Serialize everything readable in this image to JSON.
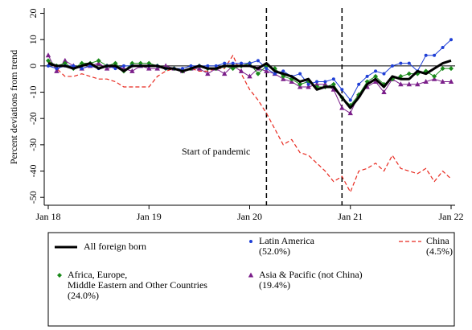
{
  "chart_data": {
    "type": "line",
    "ylabel": "Percent deviations from trend",
    "annotation": "Start of pandemic",
    "vlines": [
      "2020-03",
      "2020-12"
    ],
    "xlim": [
      "2018-01",
      "2022-01"
    ],
    "xticks": [
      {
        "value": "2018-01",
        "label": "Jan 18"
      },
      {
        "value": "2019-01",
        "label": "Jan 19"
      },
      {
        "value": "2020-01",
        "label": "Jan 20"
      },
      {
        "value": "2021-01",
        "label": "Jan 21"
      },
      {
        "value": "2022-01",
        "label": "Jan 22"
      }
    ],
    "ylim": [
      -53,
      22
    ],
    "yticks": [
      -50,
      -40,
      -30,
      -20,
      -10,
      0,
      10,
      20
    ],
    "x": [
      "2018-01",
      "2018-02",
      "2018-03",
      "2018-04",
      "2018-05",
      "2018-06",
      "2018-07",
      "2018-08",
      "2018-09",
      "2018-10",
      "2018-11",
      "2018-12",
      "2019-01",
      "2019-02",
      "2019-03",
      "2019-04",
      "2019-05",
      "2019-06",
      "2019-07",
      "2019-08",
      "2019-09",
      "2019-10",
      "2019-11",
      "2019-12",
      "2020-01",
      "2020-02",
      "2020-03",
      "2020-04",
      "2020-05",
      "2020-06",
      "2020-07",
      "2020-08",
      "2020-09",
      "2020-10",
      "2020-11",
      "2020-12",
      "2021-01",
      "2021-02",
      "2021-03",
      "2021-04",
      "2021-05",
      "2021-06",
      "2021-07",
      "2021-08",
      "2021-09",
      "2021-10",
      "2021-11",
      "2021-12",
      "2022-01"
    ],
    "series": [
      {
        "name": "All foreign born",
        "color": "#000000",
        "marker": "none",
        "dashed": false,
        "width": 3,
        "values": [
          1,
          0,
          0,
          -1,
          0,
          1,
          -1,
          0,
          0,
          -2,
          0,
          0,
          0,
          0,
          -1,
          -1,
          -2,
          -1,
          0,
          -1,
          -1,
          0,
          0,
          0,
          0,
          -1,
          1,
          -2,
          -3,
          -4,
          -6,
          -5,
          -9,
          -8,
          -8,
          -12,
          -16,
          -12,
          -7,
          -5,
          -8,
          -4,
          -5,
          -5,
          -2,
          -3,
          -1,
          1,
          2
        ]
      },
      {
        "name": "Latin America\n(52.0%)",
        "color": "#1f3fd6",
        "marker": "circle",
        "dashed": false,
        "width": 1,
        "values": [
          0,
          -1,
          0,
          0,
          -1,
          0,
          -1,
          0,
          -1,
          0,
          0,
          0,
          0,
          0,
          -1,
          -1,
          -1,
          0,
          0,
          0,
          0,
          1,
          1,
          1,
          1,
          2,
          -1,
          -3,
          -2,
          -4,
          -3,
          -7,
          -6,
          -6,
          -5,
          -9,
          -13,
          -7,
          -4,
          -2,
          -3,
          0,
          1,
          1,
          -2,
          4,
          4,
          7,
          10
        ]
      },
      {
        "name": "China\n(4.5%)",
        "color": "#e8281e",
        "marker": "none",
        "dashed": true,
        "width": 1.2,
        "values": [
          2,
          -1,
          -4,
          -4,
          -3,
          -4,
          -5,
          -5,
          -6,
          -8,
          -8,
          -8,
          -8,
          -4,
          -2,
          -1,
          -2,
          -1,
          -2,
          -2,
          -1,
          -1,
          4,
          -3,
          -9,
          -13,
          -18,
          -24,
          -30,
          -28,
          -33,
          -34,
          -37,
          -40,
          -44,
          -42,
          -48,
          -40,
          -39,
          -37,
          -40,
          -34,
          -39,
          -40,
          -41,
          -39,
          -44,
          -40,
          -43
        ]
      },
      {
        "name": "Africa, Europe,\nMiddle Eastern and Other Countries\n(24.0%)",
        "color": "#1a8a1a",
        "marker": "diamond",
        "dashed": false,
        "width": 1,
        "values": [
          2,
          0,
          1,
          -1,
          1,
          1,
          2,
          0,
          1,
          -2,
          1,
          1,
          1,
          0,
          -1,
          -1,
          -2,
          -1,
          0,
          -1,
          -1,
          0,
          -1,
          0,
          1,
          -3,
          0,
          -1,
          -4,
          -5,
          -7,
          -6,
          -8,
          -8,
          -7,
          -12,
          -15,
          -11,
          -6,
          -4,
          -7,
          -5,
          -4,
          -3,
          -3,
          -2,
          -4,
          -1,
          -1
        ]
      },
      {
        "name": "Asia & Pacific (not China)\n(19.4%)",
        "color": "#7b1f8a",
        "marker": "triangle",
        "dashed": false,
        "width": 1,
        "values": [
          4,
          -2,
          2,
          0,
          -1,
          0,
          1,
          -1,
          0,
          -1,
          -2,
          0,
          -1,
          -1,
          0,
          -1,
          -2,
          -1,
          -1,
          -3,
          -1,
          -3,
          0,
          -2,
          -4,
          -1,
          -2,
          -3,
          -5,
          -6,
          -8,
          -8,
          -7,
          -7,
          -9,
          -16,
          -18,
          -11,
          -8,
          -6,
          -10,
          -5,
          -7,
          -7,
          -7,
          -6,
          -5,
          -6,
          -6
        ]
      }
    ]
  }
}
